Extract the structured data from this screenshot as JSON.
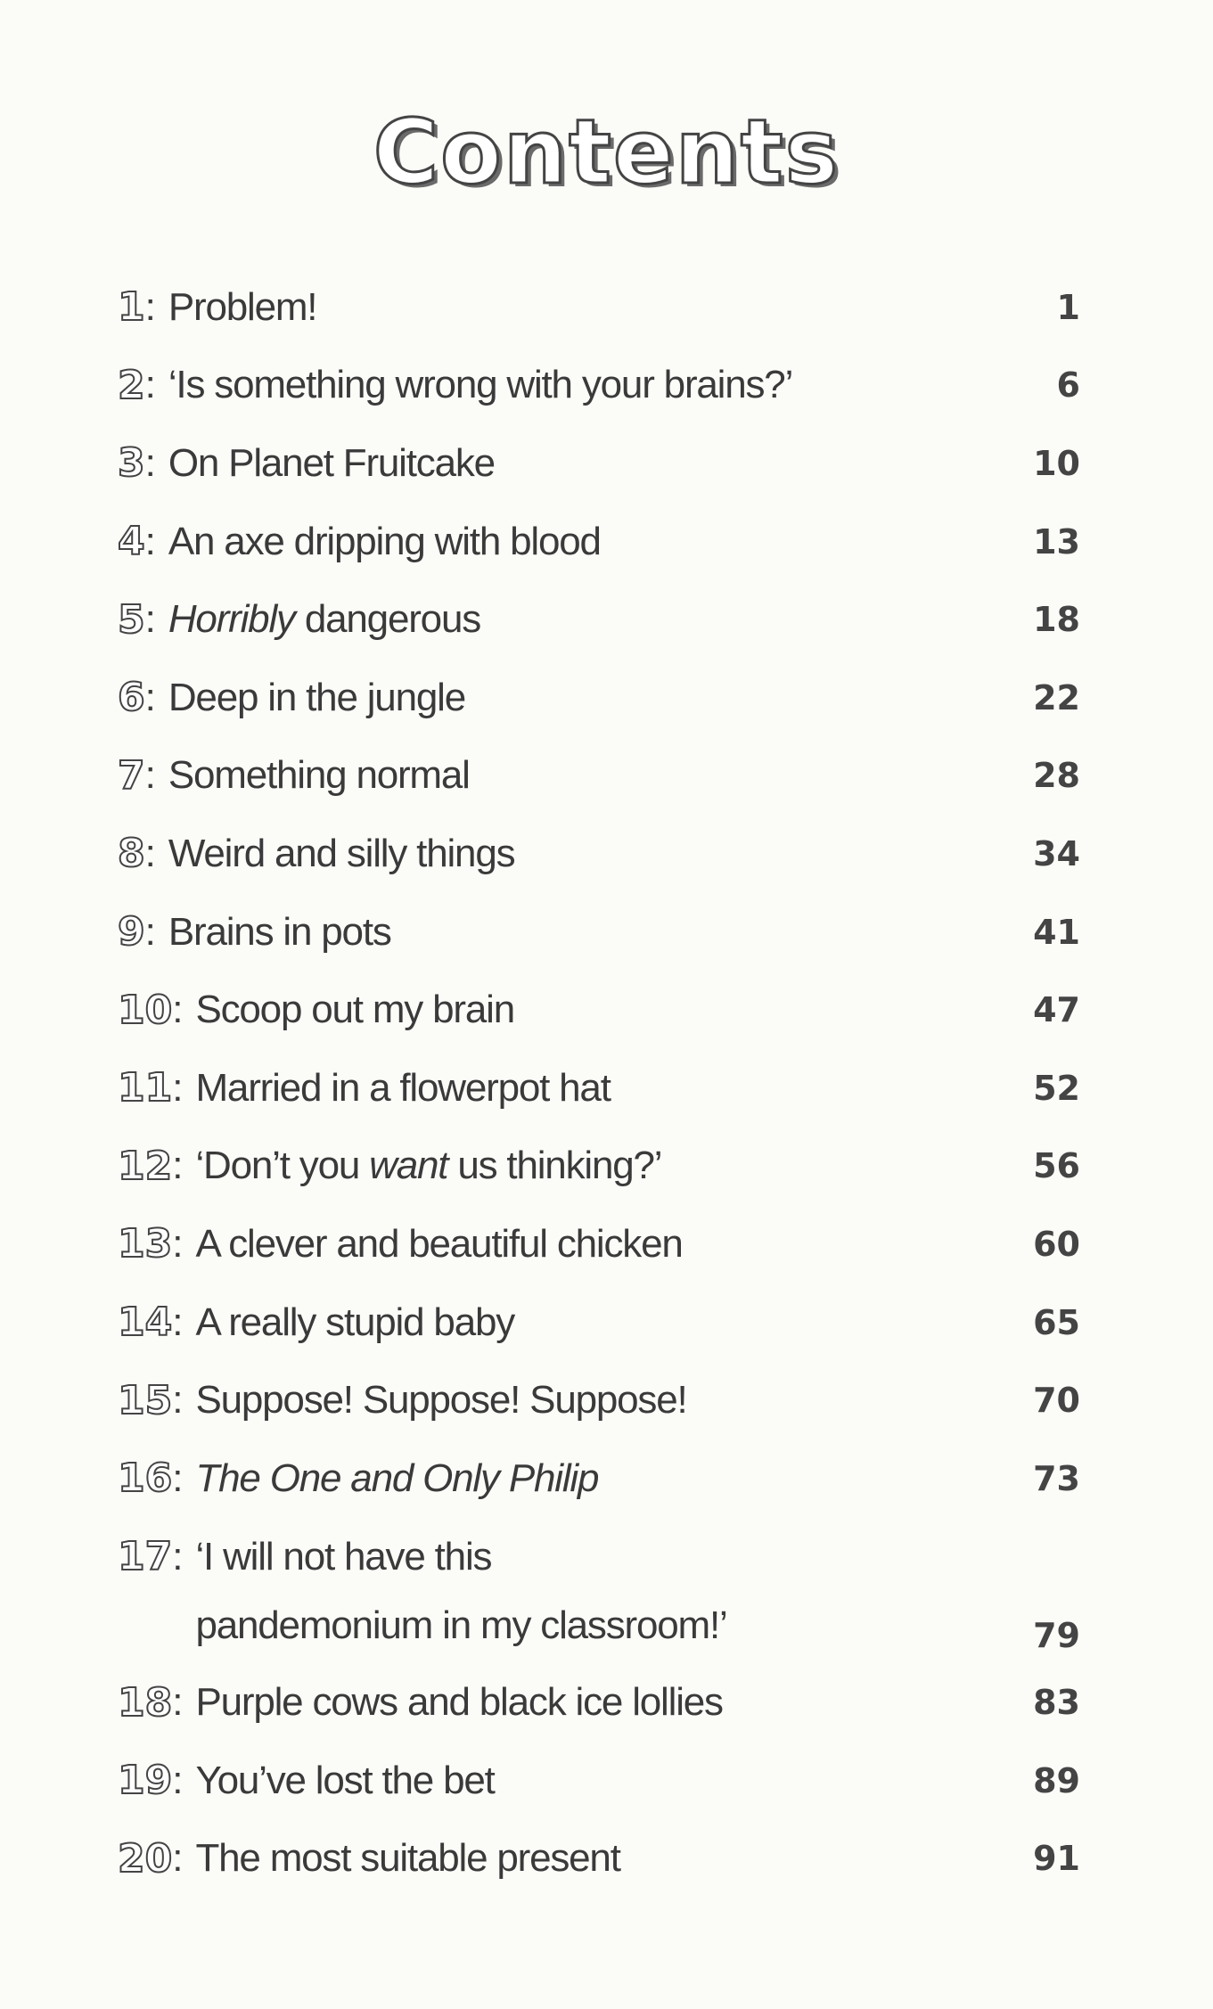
{
  "title": "Contents",
  "entries": [
    {
      "number": "1",
      "title": [
        {
          "text": "Problem!"
        }
      ],
      "page": "1"
    },
    {
      "number": "2",
      "title": [
        {
          "text": "‘Is something wrong with your brains?’"
        }
      ],
      "page": "6"
    },
    {
      "number": "3",
      "title": [
        {
          "text": "On Planet Fruitcake"
        }
      ],
      "page": "10"
    },
    {
      "number": "4",
      "title": [
        {
          "text": "An axe dripping with blood"
        }
      ],
      "page": "13"
    },
    {
      "number": "5",
      "title": [
        {
          "text": "Horribly",
          "italic": true
        },
        {
          "text": " dangerous"
        }
      ],
      "page": "18"
    },
    {
      "number": "6",
      "title": [
        {
          "text": "Deep in the jungle"
        }
      ],
      "page": "22"
    },
    {
      "number": "7",
      "title": [
        {
          "text": "Something normal"
        }
      ],
      "page": "28"
    },
    {
      "number": "8",
      "title": [
        {
          "text": "Weird and silly things"
        }
      ],
      "page": "34"
    },
    {
      "number": "9",
      "title": [
        {
          "text": "Brains in pots"
        }
      ],
      "page": "41"
    },
    {
      "number": "10",
      "title": [
        {
          "text": "Scoop out my brain"
        }
      ],
      "page": "47"
    },
    {
      "number": "11",
      "title": [
        {
          "text": "Married in a flowerpot hat"
        }
      ],
      "page": "52"
    },
    {
      "number": "12",
      "title": [
        {
          "text": "‘Don’t you "
        },
        {
          "text": "want",
          "italic": true
        },
        {
          "text": " us thinking?’"
        }
      ],
      "page": "56"
    },
    {
      "number": "13",
      "title": [
        {
          "text": "A clever and beautiful chicken"
        }
      ],
      "page": "60"
    },
    {
      "number": "14",
      "title": [
        {
          "text": "A really stupid baby"
        }
      ],
      "page": "65"
    },
    {
      "number": "15",
      "title": [
        {
          "text": "Suppose! Suppose! Suppose!"
        }
      ],
      "page": "70"
    },
    {
      "number": "16",
      "title": [
        {
          "text": "The One and Only Philip",
          "italic": true
        }
      ],
      "page": "73"
    },
    {
      "number": "17",
      "title": [
        {
          "text": "‘I will not have this"
        },
        {
          "text": "pandemonium in my classroom!’",
          "newline": true
        }
      ],
      "page": "79"
    },
    {
      "number": "18",
      "title": [
        {
          "text": "Purple cows and black ice lollies"
        }
      ],
      "page": "83"
    },
    {
      "number": "19",
      "title": [
        {
          "text": "You’ve lost the bet"
        }
      ],
      "page": "89"
    },
    {
      "number": "20",
      "title": [
        {
          "text": "The most suitable present"
        }
      ],
      "page": "91"
    }
  ]
}
